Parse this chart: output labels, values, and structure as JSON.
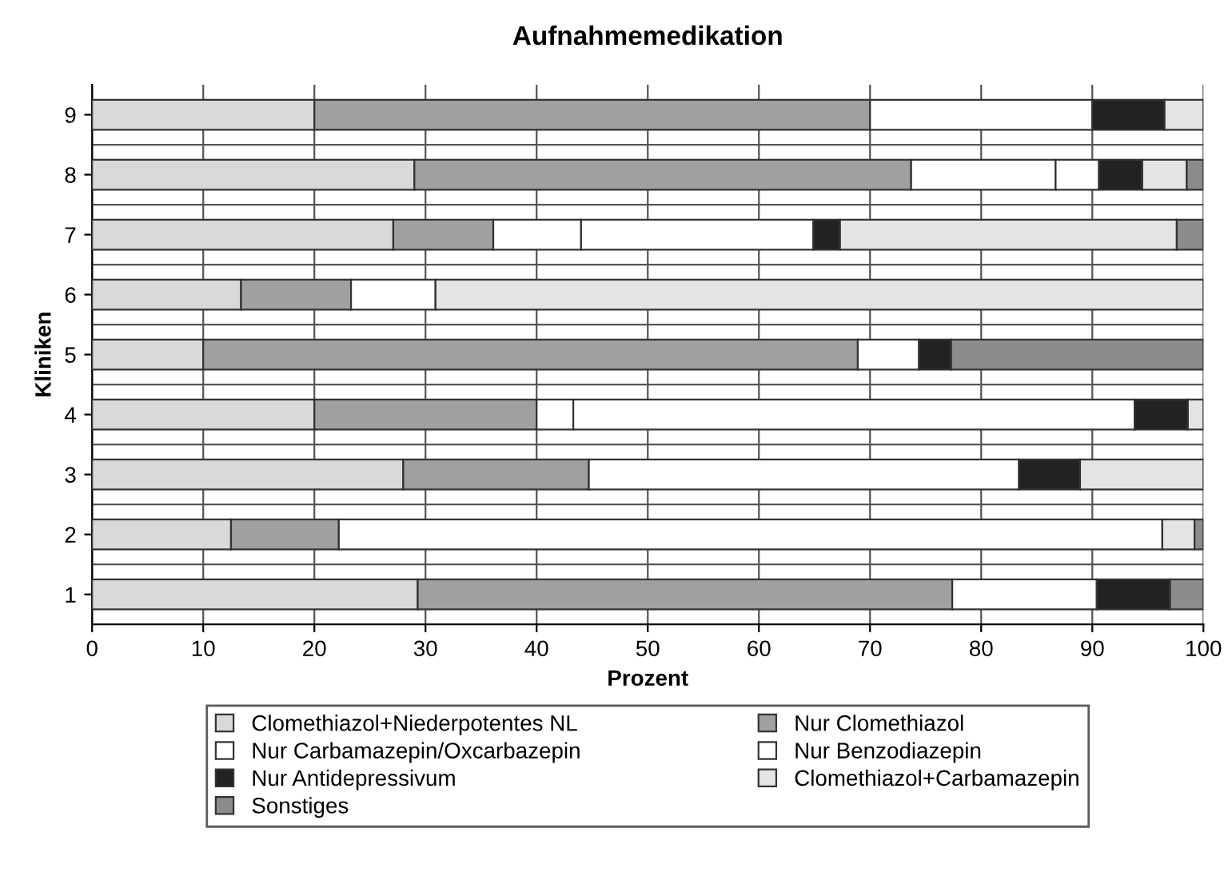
{
  "chart_data": {
    "type": "bar",
    "orientation": "horizontal",
    "stacked": true,
    "title": "Aufnahmemedikation",
    "xlabel": "Prozent",
    "ylabel": "Kliniken",
    "categories": [
      "9",
      "8",
      "7",
      "6",
      "5",
      "4",
      "3",
      "2",
      "1"
    ],
    "series": [
      {
        "name": "Clomethiazol+Niederpotentes NL",
        "color": "#d9d9d9",
        "values": [
          20,
          29,
          27.1,
          13.4,
          10,
          20,
          28,
          12.5,
          29.3
        ]
      },
      {
        "name": "Nur Clomethiazol",
        "color": "#a0a0a0",
        "values": [
          50,
          44.7,
          9,
          9.9,
          58.9,
          20,
          16.7,
          9.7,
          48.1
        ]
      },
      {
        "name": "Nur Carbamazepin/Oxcarbazepin",
        "color": "#ffffff",
        "values": [
          20,
          13,
          7.9,
          7.6,
          5.5,
          3.3,
          38.7,
          74.1,
          13
        ]
      },
      {
        "name": "Nur Benzodiazepin",
        "color": "#ffffff",
        "values": [
          0,
          3.9,
          20.9,
          0,
          0,
          50.5,
          0,
          0,
          0
        ]
      },
      {
        "name": "Nur Antidepressivum",
        "color": "#222222",
        "values": [
          6.5,
          3.9,
          2.4,
          0,
          2.9,
          4.8,
          5.5,
          0,
          6.6
        ]
      },
      {
        "name": "Clomethiazol+Carbamazepin",
        "color": "#e4e4e4",
        "values": [
          3.5,
          4,
          30.3,
          69.1,
          0,
          1.4,
          11.1,
          2.9,
          0
        ]
      },
      {
        "name": "Sonstiges",
        "color": "#8c8c8c",
        "values": [
          0,
          1.5,
          2.4,
          0,
          22.7,
          0,
          0,
          0.8,
          3
        ]
      }
    ],
    "xlim": [
      0,
      100
    ],
    "xticks": [
      0,
      10,
      20,
      30,
      40,
      50,
      60,
      70,
      80,
      90,
      100
    ],
    "grid": true,
    "legend": "bottom"
  }
}
